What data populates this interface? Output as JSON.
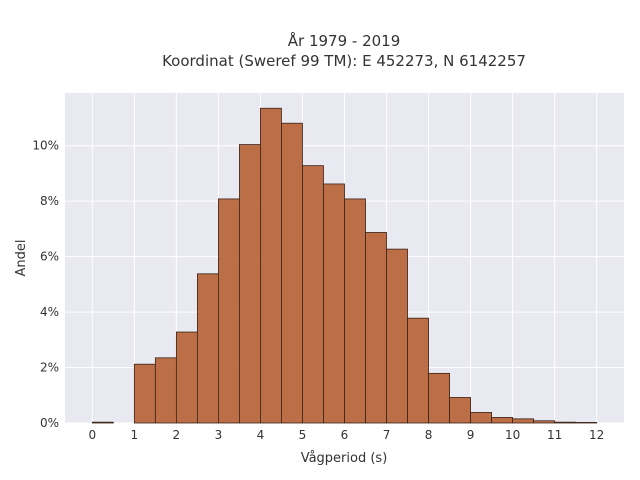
{
  "chart_data": {
    "type": "bar",
    "title": "År 1979 - 2019",
    "subtitle": "Koordinat (Sweref 99 TM): E 452273, N 6142257",
    "xlabel": "Vågperiod (s)",
    "ylabel": "Andel",
    "xlim": [
      -0.65,
      12.65
    ],
    "ylim": [
      0,
      11.9
    ],
    "x_ticks": [
      "0",
      "1",
      "2",
      "3",
      "4",
      "5",
      "6",
      "7",
      "8",
      "9",
      "10",
      "11",
      "12"
    ],
    "y_ticks": [
      "0%",
      "2%",
      "4%",
      "6%",
      "8%",
      "10%"
    ],
    "y_tick_values": [
      0,
      2,
      4,
      6,
      8,
      10
    ],
    "grid": true,
    "bin_edges": [
      0,
      0.5,
      1,
      1.5,
      2,
      2.5,
      3,
      3.5,
      4,
      4.5,
      5,
      5.5,
      6,
      6.5,
      7,
      7.5,
      8,
      8.5,
      9,
      9.5,
      10,
      10.5,
      11,
      11.5,
      12
    ],
    "values": [
      0.03,
      0.0,
      2.12,
      2.35,
      3.28,
      5.38,
      8.08,
      10.04,
      11.35,
      10.81,
      9.28,
      8.62,
      8.08,
      6.87,
      6.27,
      3.78,
      1.79,
      0.92,
      0.38,
      0.2,
      0.15,
      0.08,
      0.03,
      0.02
    ],
    "bar_color": "#b9683d"
  }
}
